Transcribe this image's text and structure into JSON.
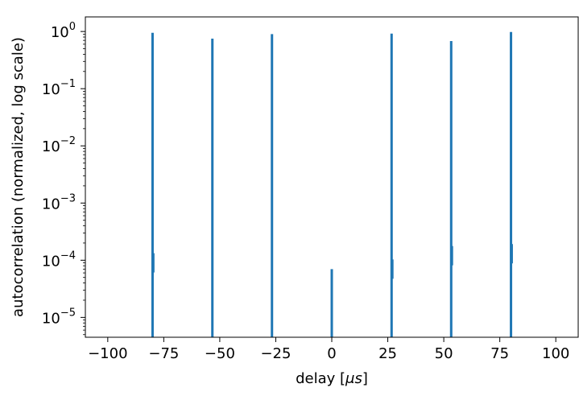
{
  "chart_data": {
    "type": "line",
    "title": "",
    "xlabel_main": "delay [",
    "xlabel_unit": "μs",
    "xlabel_end": "]",
    "ylabel": "autocorrelation (normalized, log scale)",
    "xlim": [
      -110,
      110
    ],
    "ylim": [
      4.5e-06,
      1.8
    ],
    "yscale": "log",
    "grid": false,
    "legend": "none",
    "xticks": [
      -100,
      -75,
      -50,
      -25,
      0,
      25,
      50,
      75,
      100
    ],
    "xtick_labels": [
      "−100",
      "−75",
      "−50",
      "−25",
      "0",
      "25",
      "50",
      "75",
      "100"
    ],
    "yticks": [
      {
        "value": 1,
        "base": "10",
        "exp": "0"
      },
      {
        "value": 0.1,
        "base": "10",
        "exp": "−1"
      },
      {
        "value": 0.01,
        "base": "10",
        "exp": "−2"
      },
      {
        "value": 0.001,
        "base": "10",
        "exp": "−3"
      },
      {
        "value": 0.0001,
        "base": "10",
        "exp": "−4"
      },
      {
        "value": 1e-05,
        "base": "10",
        "exp": "−5"
      }
    ],
    "series": [
      {
        "color": "#1f77b4",
        "peaks": [
          {
            "x": -80,
            "y": 0.95,
            "side_y": 9e-05
          },
          {
            "x": -53.3,
            "y": 0.75
          },
          {
            "x": -26.7,
            "y": 0.9
          },
          {
            "x": 0,
            "y": 7e-05
          },
          {
            "x": 26.7,
            "y": 0.92,
            "side_y": 7e-05
          },
          {
            "x": 53.3,
            "y": 0.68,
            "side_y": 0.00012
          },
          {
            "x": 80,
            "y": 0.98,
            "side_y": 0.00013
          }
        ]
      }
    ]
  }
}
